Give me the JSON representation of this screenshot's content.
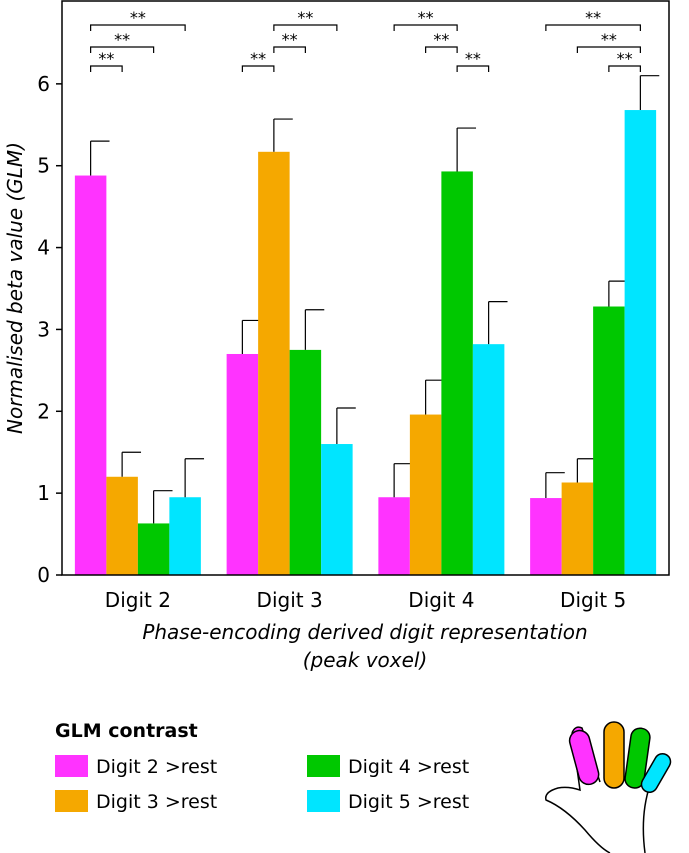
{
  "chart_data": {
    "type": "bar",
    "ylabel": "Normalised beta value (GLM)",
    "xlabel": [
      "Phase-encoding derived digit representation",
      "(peak voxel)"
    ],
    "categories": [
      "Digit 2",
      "Digit 3",
      "Digit 4",
      "Digit 5"
    ],
    "series": [
      {
        "name": "Digit 2 >rest",
        "color": "#ff33ff",
        "values": [
          4.88,
          2.7,
          0.95,
          0.94
        ],
        "errors": [
          0.42,
          0.41,
          0.41,
          0.31
        ]
      },
      {
        "name": "Digit 3 >rest",
        "color": "#f5a800",
        "values": [
          1.2,
          5.17,
          1.96,
          1.13
        ],
        "errors": [
          0.3,
          0.4,
          0.42,
          0.29
        ]
      },
      {
        "name": "Digit 4 >rest",
        "color": "#00c800",
        "values": [
          0.63,
          2.75,
          4.93,
          3.28
        ],
        "errors": [
          0.4,
          0.49,
          0.53,
          0.31
        ]
      },
      {
        "name": "Digit 5 >rest",
        "color": "#00e5ff",
        "values": [
          0.95,
          1.6,
          2.82,
          5.68
        ],
        "errors": [
          0.47,
          0.44,
          0.52,
          0.42
        ]
      }
    ],
    "ylim": [
      0,
      7
    ],
    "yticks": [
      0,
      1,
      2,
      3,
      4,
      5,
      6
    ],
    "legend_title": "GLM contrast",
    "annotations": [
      "**",
      "**",
      "**",
      "**",
      "**",
      "**",
      "**",
      "**",
      "**",
      "**",
      "**",
      "**"
    ]
  }
}
